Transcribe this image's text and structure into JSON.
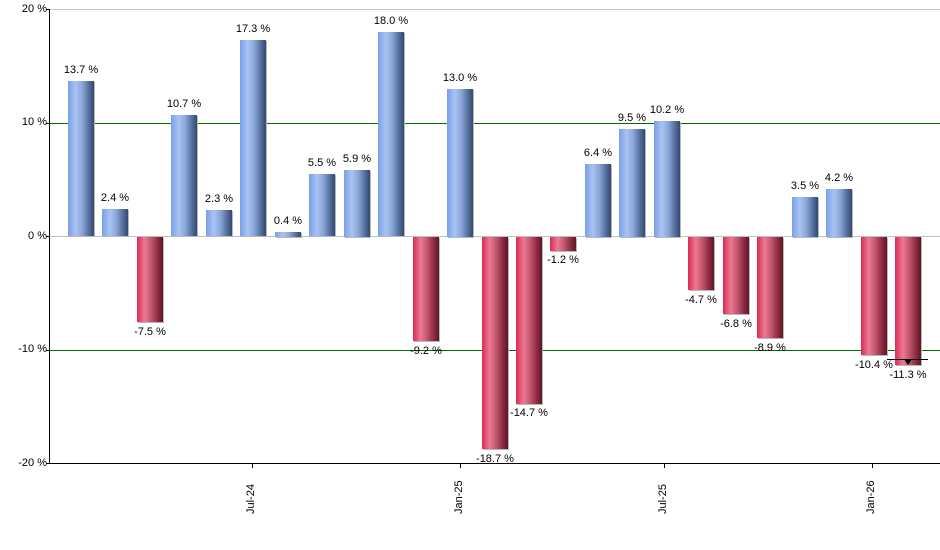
{
  "chart_data": {
    "type": "bar",
    "title": "",
    "xlabel": "",
    "ylabel": "",
    "ylim": [
      -20,
      20
    ],
    "y_ticks": [
      "20 %",
      "10 %",
      "0 %",
      "-10 %",
      "-20 %"
    ],
    "y_tick_values": [
      20,
      10,
      0,
      -10,
      -20
    ],
    "x_ticks": [
      "Jul-24",
      "Jan-25",
      "Jul-25",
      "Jan-26"
    ],
    "reference_lines": [
      10,
      -10
    ],
    "reference_line_color": "#007000",
    "positive_color": "#7a9fe8",
    "negative_color": "#dc2a55",
    "categories": [
      "Feb-24",
      "Mar-24",
      "Apr-24",
      "May-24",
      "Jun-24",
      "Jul-24",
      "Aug-24",
      "Sep-24",
      "Oct-24",
      "Nov-24",
      "Dec-24",
      "Jan-25",
      "Feb-25",
      "Mar-25",
      "Apr-25",
      "May-25",
      "Jun-25",
      "Jul-25",
      "Aug-25",
      "Sep-25",
      "Oct-25",
      "Nov-25",
      "Dec-25",
      "Jan-26",
      "Feb-26"
    ],
    "values": [
      13.7,
      2.4,
      -7.5,
      10.7,
      2.3,
      17.3,
      0.4,
      5.5,
      5.9,
      18.0,
      -9.2,
      13.0,
      -18.7,
      -14.7,
      -1.2,
      6.4,
      9.5,
      10.2,
      -4.7,
      -6.8,
      -8.9,
      3.5,
      4.2,
      -10.4,
      -11.3
    ],
    "labels": [
      "13.7 %",
      "2.4 %",
      "-7.5 %",
      "10.7 %",
      "2.3 %",
      "17.3 %",
      "0.4 %",
      "5.5 %",
      "5.9 %",
      "18.0 %",
      "-9.2 %",
      "13.0 %",
      "-18.7 %",
      "-14.7 %",
      "-1.2 %",
      "6.4 %",
      "9.5 %",
      "10.2 %",
      "-4.7 %",
      "-6.8 %",
      "-8.9 %",
      "3.5 %",
      "4.2 %",
      "-10.4 %",
      "-11.3 %"
    ],
    "grid": false,
    "legend": null
  }
}
